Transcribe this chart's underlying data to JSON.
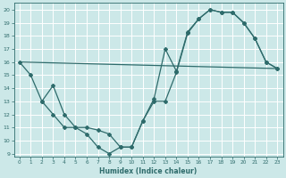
{
  "xlabel": "Humidex (Indice chaleur)",
  "ylabel": "",
  "xlim": [
    -0.5,
    23.5
  ],
  "ylim": [
    8.8,
    20.5
  ],
  "yticks": [
    9,
    10,
    11,
    12,
    13,
    14,
    15,
    16,
    17,
    18,
    19,
    20
  ],
  "xticks": [
    0,
    1,
    2,
    3,
    4,
    5,
    6,
    7,
    8,
    9,
    10,
    11,
    12,
    13,
    14,
    15,
    16,
    17,
    18,
    19,
    20,
    21,
    22,
    23
  ],
  "bg_color": "#cce8e8",
  "line_color": "#2e6b6b",
  "grid_color": "#ffffff",
  "line1_x": [
    0,
    1,
    2,
    3,
    4,
    5,
    6,
    7,
    8,
    9,
    10,
    11,
    12,
    13,
    14,
    15,
    16,
    17,
    18,
    19,
    20,
    21,
    22,
    23
  ],
  "line1_y": [
    16.0,
    15.0,
    13.0,
    12.0,
    11.0,
    11.0,
    10.5,
    9.5,
    9.0,
    9.5,
    9.5,
    11.5,
    13.0,
    13.0,
    15.2,
    18.2,
    19.3,
    20.0,
    19.8,
    19.8,
    19.0,
    17.8,
    16.0,
    15.5
  ],
  "line2_x": [
    0,
    23
  ],
  "line2_y": [
    16.0,
    15.5
  ],
  "line3_x": [
    2,
    3,
    4,
    5,
    6,
    7,
    8,
    9,
    10,
    11,
    12,
    13,
    14,
    15,
    16,
    17,
    18,
    19,
    20,
    21,
    22,
    23
  ],
  "line3_y": [
    13.0,
    14.2,
    12.0,
    11.0,
    11.0,
    10.8,
    10.5,
    9.5,
    9.5,
    11.5,
    13.2,
    17.0,
    15.3,
    18.3,
    19.3,
    20.0,
    19.8,
    19.8,
    19.0,
    17.8,
    16.0,
    15.5
  ]
}
